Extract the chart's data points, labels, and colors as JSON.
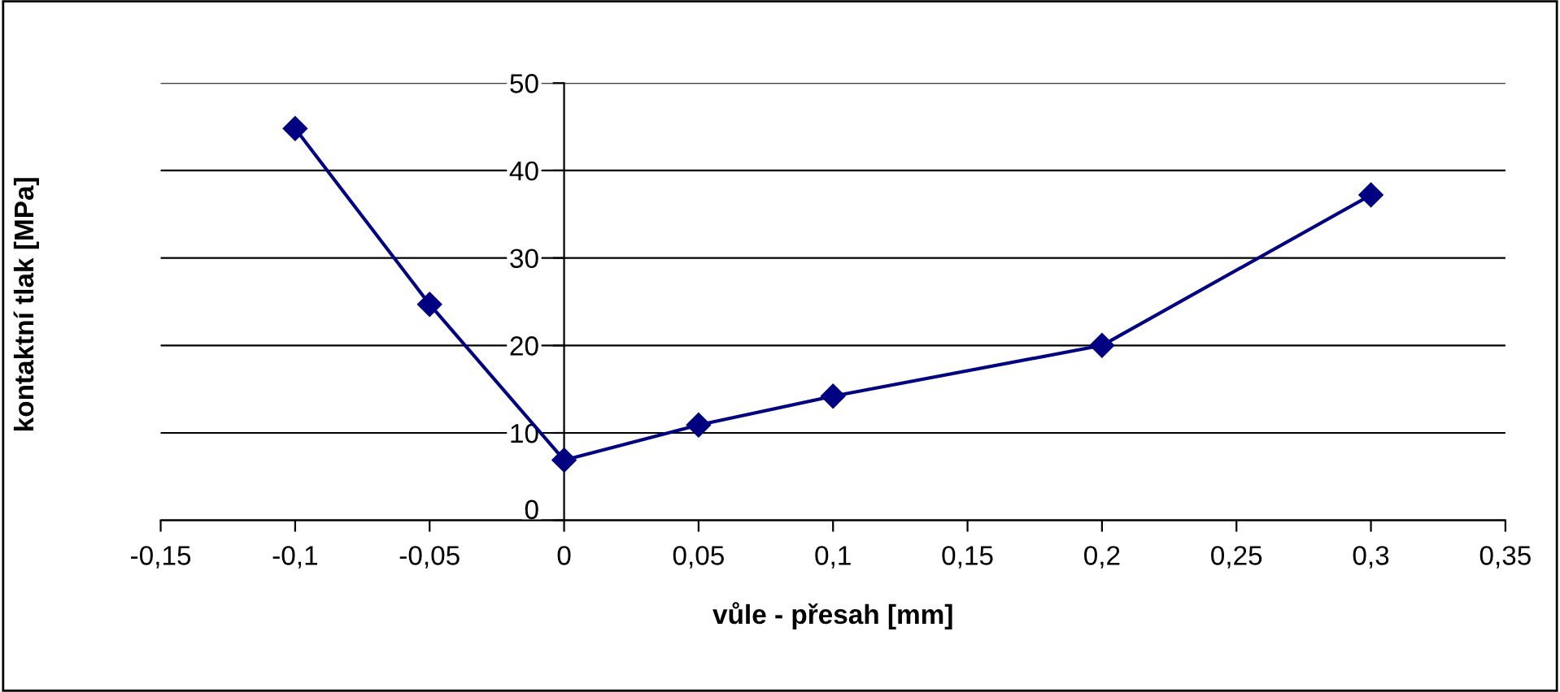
{
  "chart_data": {
    "type": "line",
    "xlabel": "vůle - přesah [mm]",
    "ylabel": "kontaktní tlak [MPa]",
    "x": [
      -0.1,
      -0.05,
      0,
      0.05,
      0.1,
      0.2,
      0.3
    ],
    "series": [
      {
        "color": "#000080",
        "values": [
          44.8,
          24.7,
          6.9,
          10.9,
          14.2,
          20.0,
          37.2
        ]
      }
    ],
    "marker": "diamond",
    "line_style": "solid",
    "grid": "y",
    "xlim": [
      -0.15,
      0.35
    ],
    "ylim": [
      0,
      50
    ],
    "xticks": [
      {
        "value": -0.15,
        "label": "-0,15"
      },
      {
        "value": -0.1,
        "label": "-0,1"
      },
      {
        "value": -0.05,
        "label": "-0,05"
      },
      0,
      {
        "value": 0.05,
        "label": "0,05"
      },
      {
        "value": 0.1,
        "label": "0,1"
      },
      {
        "value": 0.15,
        "label": "0,15"
      },
      {
        "value": 0.2,
        "label": "0,2"
      },
      {
        "value": 0.25,
        "label": "0,25"
      },
      {
        "value": 0.3,
        "label": "0,3"
      },
      {
        "value": 0.35,
        "label": "0,35"
      }
    ],
    "yticks": [
      0,
      10,
      20,
      30,
      40,
      50
    ]
  }
}
